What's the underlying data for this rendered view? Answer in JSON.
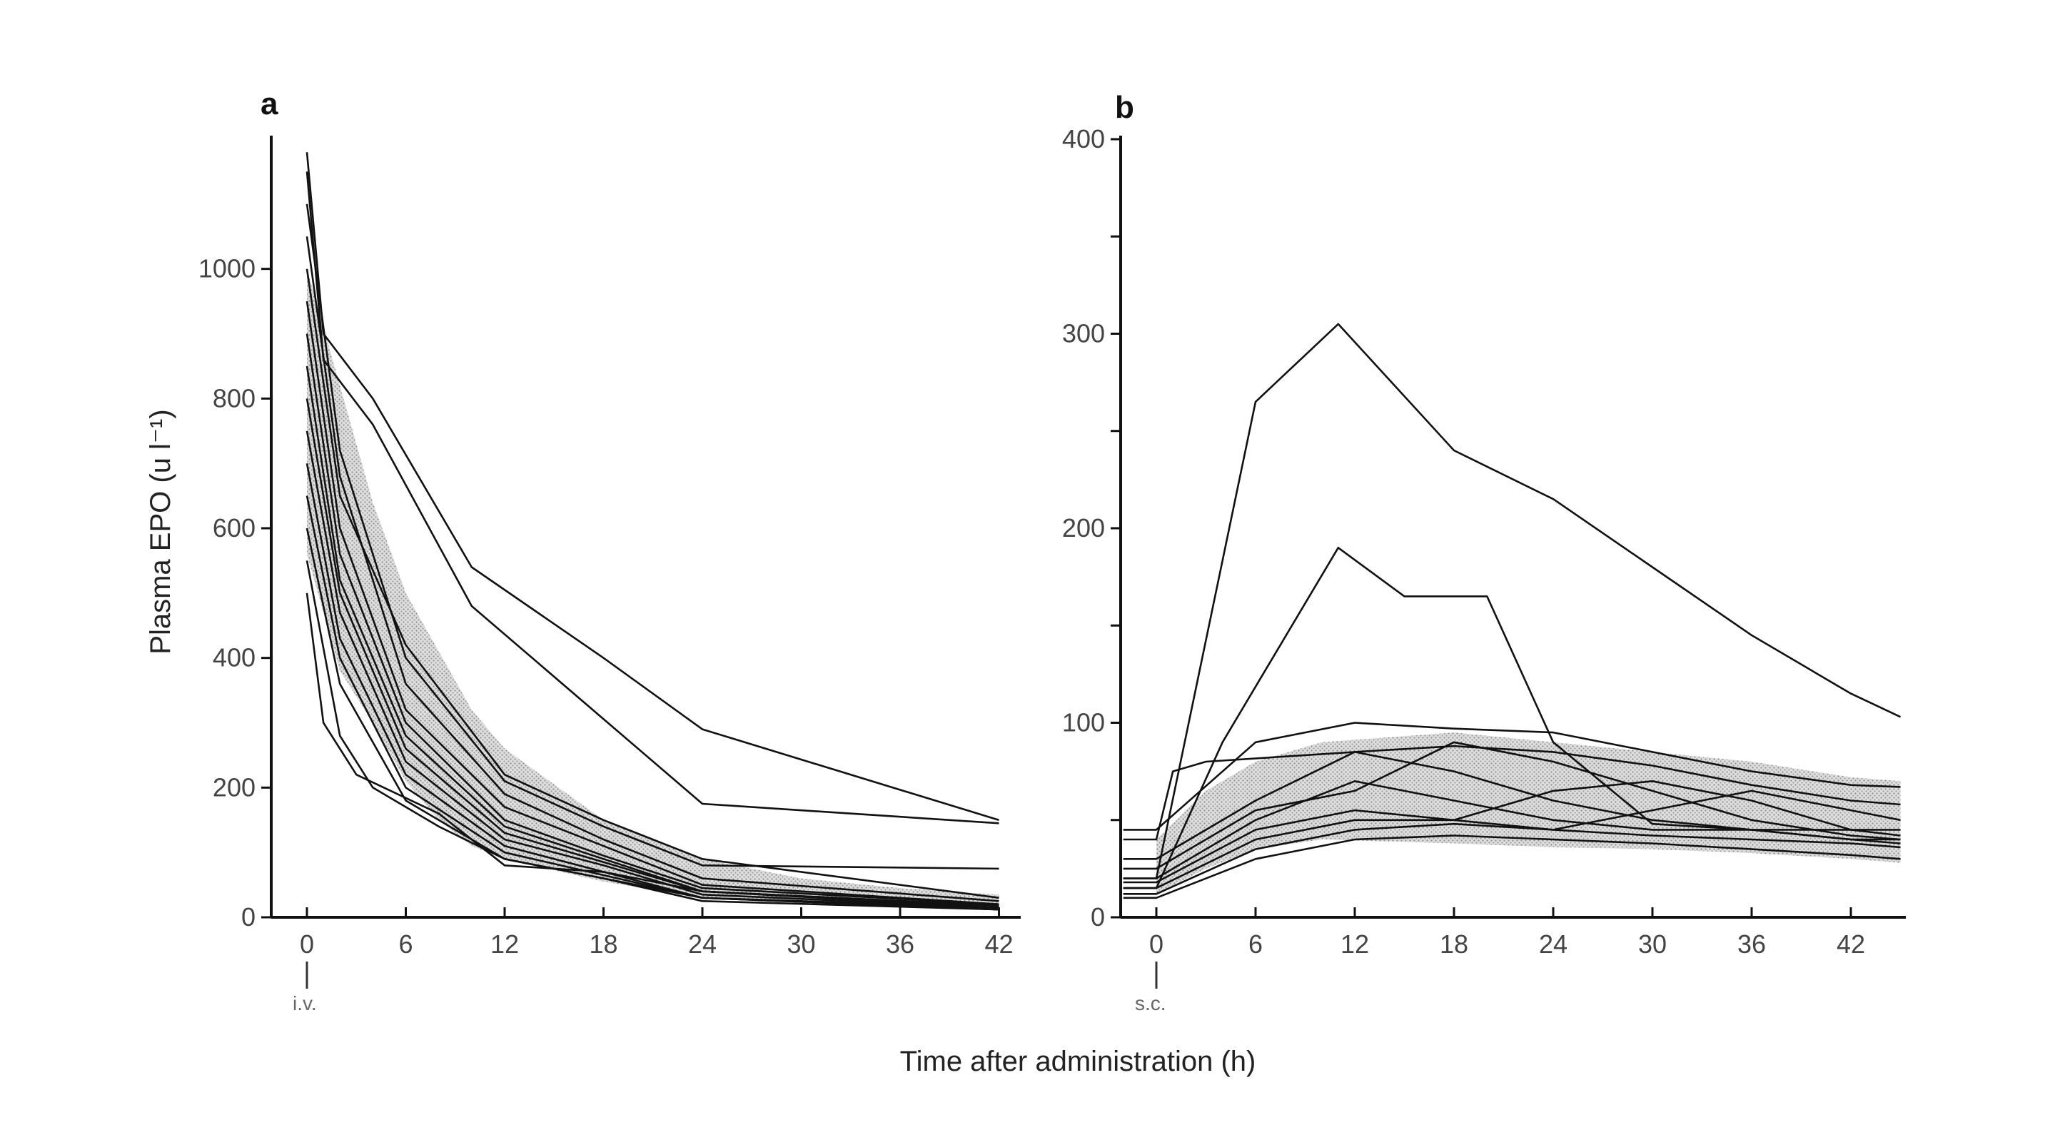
{
  "figure": {
    "xlabel": "Time after administration (h)",
    "ylabel": "Plasma EPO (u l⁻¹)"
  },
  "chart_data": [
    {
      "type": "line",
      "panel": "a",
      "route_label": "i.v.",
      "xlim": [
        -2,
        43.5
      ],
      "ylim": [
        0,
        1200
      ],
      "xticks": [
        0,
        6,
        12,
        18,
        24,
        30,
        36,
        42
      ],
      "yticks": [
        0,
        200,
        400,
        600,
        800,
        1000
      ],
      "ytick_labels_shown": [
        0,
        200,
        400,
        600,
        800,
        1000
      ],
      "band": {
        "x": [
          0,
          2,
          4,
          6,
          8,
          10,
          12,
          18,
          24,
          30,
          36,
          42
        ],
        "lower": [
          560,
          380,
          300,
          210,
          150,
          110,
          90,
          55,
          30,
          22,
          18,
          15
        ],
        "upper": [
          1000,
          820,
          640,
          500,
          410,
          320,
          260,
          150,
          90,
          60,
          45,
          35
        ]
      },
      "series": [
        {
          "x": [
            0,
            1,
            4,
            10,
            18,
            24,
            42
          ],
          "y": [
            1180,
            900,
            800,
            540,
            400,
            290,
            150
          ]
        },
        {
          "x": [
            0,
            1,
            4,
            10,
            24,
            42
          ],
          "y": [
            1150,
            860,
            760,
            480,
            175,
            145
          ]
        },
        {
          "x": [
            0,
            2,
            6,
            12,
            18,
            24,
            42
          ],
          "y": [
            1100,
            720,
            400,
            210,
            140,
            80,
            75
          ]
        },
        {
          "x": [
            0,
            2,
            6,
            12,
            18,
            24,
            42
          ],
          "y": [
            1050,
            680,
            360,
            190,
            120,
            60,
            25
          ]
        },
        {
          "x": [
            0,
            2,
            6,
            12,
            18,
            24,
            42
          ],
          "y": [
            1000,
            650,
            420,
            220,
            150,
            90,
            30
          ]
        },
        {
          "x": [
            0,
            2,
            6,
            12,
            18,
            24,
            42
          ],
          "y": [
            950,
            600,
            320,
            170,
            110,
            50,
            20
          ]
        },
        {
          "x": [
            0,
            2,
            6,
            12,
            18,
            24,
            42
          ],
          "y": [
            900,
            560,
            300,
            150,
            95,
            45,
            20
          ]
        },
        {
          "x": [
            0,
            2,
            6,
            12,
            18,
            24,
            42
          ],
          "y": [
            850,
            520,
            280,
            140,
            90,
            40,
            18
          ]
        },
        {
          "x": [
            0,
            2,
            6,
            12,
            18,
            24,
            42
          ],
          "y": [
            800,
            500,
            260,
            130,
            85,
            40,
            18
          ]
        },
        {
          "x": [
            0,
            2,
            6,
            12,
            18,
            24,
            42
          ],
          "y": [
            750,
            470,
            240,
            120,
            80,
            35,
            15
          ]
        },
        {
          "x": [
            0,
            2,
            6,
            12,
            18,
            24,
            42
          ],
          "y": [
            700,
            430,
            220,
            110,
            70,
            30,
            15
          ]
        },
        {
          "x": [
            0,
            2,
            6,
            12,
            18,
            24,
            42
          ],
          "y": [
            650,
            400,
            200,
            100,
            65,
            30,
            12
          ]
        },
        {
          "x": [
            0,
            2,
            6,
            12,
            18,
            24,
            42
          ],
          "y": [
            600,
            360,
            180,
            90,
            60,
            25,
            12
          ]
        },
        {
          "x": [
            0,
            2,
            4,
            8,
            12,
            18,
            24,
            42
          ],
          "y": [
            550,
            280,
            200,
            140,
            90,
            60,
            30,
            12
          ]
        },
        {
          "x": [
            0,
            1,
            3,
            8,
            12,
            18,
            24,
            42
          ],
          "y": [
            500,
            300,
            220,
            160,
            80,
            70,
            40,
            15
          ]
        }
      ]
    },
    {
      "type": "line",
      "panel": "b",
      "route_label": "s.c.",
      "xlim": [
        -2,
        45
      ],
      "ylim": [
        0,
        400
      ],
      "xticks": [
        0,
        6,
        12,
        18,
        24,
        30,
        36,
        42
      ],
      "yticks": [
        0,
        50,
        100,
        150,
        200,
        250,
        300,
        350,
        400
      ],
      "ytick_labels_shown": [
        0,
        100,
        200,
        300,
        400
      ],
      "band": {
        "x": [
          0,
          3,
          6,
          10,
          18,
          24,
          30,
          36,
          42,
          45
        ],
        "lower": [
          12,
          25,
          35,
          40,
          38,
          36,
          35,
          33,
          30,
          28
        ],
        "upper": [
          40,
          65,
          80,
          90,
          95,
          90,
          85,
          80,
          72,
          70
        ]
      },
      "series": [
        {
          "x": [
            -2,
            0,
            6,
            11,
            18,
            24,
            30,
            36,
            42,
            45
          ],
          "y": [
            20,
            20,
            265,
            305,
            240,
            215,
            180,
            145,
            115,
            103
          ]
        },
        {
          "x": [
            -2,
            0,
            4,
            11,
            15,
            20,
            24,
            30,
            36,
            42,
            45
          ],
          "y": [
            15,
            15,
            90,
            190,
            165,
            165,
            90,
            48,
            45,
            40,
            40
          ]
        },
        {
          "x": [
            -2,
            0,
            6,
            12,
            18,
            24,
            30,
            36,
            42,
            45
          ],
          "y": [
            45,
            45,
            90,
            100,
            97,
            95,
            85,
            75,
            68,
            67
          ]
        },
        {
          "x": [
            -2,
            0,
            1,
            3,
            12,
            18,
            24,
            30,
            36,
            42,
            45
          ],
          "y": [
            40,
            40,
            75,
            80,
            85,
            88,
            85,
            78,
            68,
            60,
            58
          ]
        },
        {
          "x": [
            -2,
            0,
            6,
            12,
            18,
            24,
            30,
            36,
            42,
            45
          ],
          "y": [
            30,
            30,
            60,
            85,
            75,
            60,
            50,
            45,
            40,
            38
          ]
        },
        {
          "x": [
            -2,
            0,
            6,
            12,
            18,
            24,
            30,
            36,
            42,
            45
          ],
          "y": [
            25,
            25,
            55,
            65,
            90,
            80,
            65,
            50,
            42,
            40
          ]
        },
        {
          "x": [
            -2,
            0,
            6,
            12,
            18,
            24,
            30,
            36,
            42,
            45
          ],
          "y": [
            20,
            20,
            50,
            70,
            60,
            50,
            45,
            45,
            45,
            45
          ]
        },
        {
          "x": [
            -2,
            0,
            6,
            12,
            18,
            24,
            30,
            36,
            42,
            45
          ],
          "y": [
            18,
            18,
            45,
            55,
            50,
            45,
            55,
            65,
            55,
            50
          ]
        },
        {
          "x": [
            -2,
            0,
            6,
            12,
            18,
            24,
            30,
            36,
            42,
            45
          ],
          "y": [
            15,
            15,
            40,
            50,
            50,
            65,
            70,
            60,
            45,
            42
          ]
        },
        {
          "x": [
            -2,
            0,
            6,
            12,
            18,
            24,
            30,
            36,
            42,
            45
          ],
          "y": [
            12,
            12,
            35,
            45,
            48,
            45,
            42,
            40,
            38,
            36
          ]
        },
        {
          "x": [
            -2,
            0,
            6,
            12,
            18,
            24,
            30,
            36,
            42,
            45
          ],
          "y": [
            10,
            10,
            30,
            40,
            42,
            40,
            38,
            35,
            32,
            30
          ]
        }
      ]
    }
  ]
}
